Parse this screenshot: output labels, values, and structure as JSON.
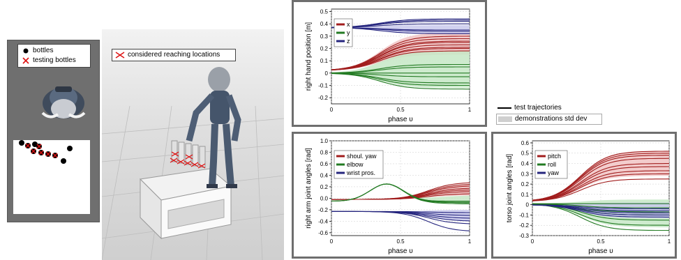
{
  "left_panel": {
    "legend": {
      "bottles": "bottles",
      "testing_bottles": "testing bottles"
    }
  },
  "scene": {
    "legend": {
      "reaching": "considered reaching locations"
    }
  },
  "global_legend": {
    "test": "test trajectories",
    "std": "demonstrations std dev"
  },
  "colors": {
    "red": "#a11d1d",
    "green": "#227a22",
    "blue": "#25257e",
    "band_red": "#f1c4c4",
    "band_green": "#c6e8c6",
    "band_blue": "#c9c9ec"
  },
  "icons": {
    "red_cross": "cross-icon",
    "black_dot": "dot-icon"
  },
  "chart_data": [
    {
      "type": "line",
      "ylabel": "right hand position [m]",
      "xlabel": "phase υ",
      "xticks": [
        "0",
        "0.5",
        "1"
      ],
      "yticks": [
        "0.5",
        "0.4",
        "0.3",
        "0.2",
        "0.1",
        "0",
        "-0.1",
        "-0.2"
      ],
      "ylim": [
        -0.25,
        0.52
      ],
      "xlim": [
        0,
        1
      ],
      "legend_position": "top-left",
      "series": [
        {
          "name": "x",
          "color": "red",
          "start": 0.02,
          "ends": [
            0.3,
            0.28,
            0.26,
            0.25,
            0.23,
            0.21,
            0.2,
            0.18
          ],
          "band": [
            0.15,
            0.33
          ],
          "shape": "sigmoid"
        },
        {
          "name": "y",
          "color": "green",
          "start": 0.0,
          "ends": [
            0.07,
            0.05,
            0.0,
            -0.03,
            -0.08,
            -0.1,
            -0.13
          ],
          "band": [
            -0.12,
            0.18
          ],
          "shape": "sigmoid"
        },
        {
          "name": "z",
          "color": "blue",
          "start": 0.37,
          "ends": [
            0.44,
            0.43,
            0.42,
            0.4,
            0.35,
            0.34,
            0.32
          ],
          "band": [
            0.32,
            0.39
          ],
          "shape": "sigmoid"
        }
      ]
    },
    {
      "type": "line",
      "ylabel": "right arm joint angles [rad]",
      "xlabel": "phase υ",
      "xticks": [
        "0",
        "0.5",
        "1"
      ],
      "yticks": [
        "1.0",
        "0.8",
        "0.6",
        "0.4",
        "0.2",
        "0.0",
        "-0.2",
        "-0.4",
        "-0.6"
      ],
      "ylim": [
        -0.65,
        1.0
      ],
      "xlim": [
        0,
        1
      ],
      "legend_position": "top-left",
      "series": [
        {
          "name": "shoul. yaw",
          "color": "red",
          "start": -0.02,
          "ends": [
            0.28,
            0.25,
            0.22,
            0.18,
            0.15,
            0.12,
            0.08
          ],
          "band": [
            0.05,
            0.25
          ],
          "shape": "sigmoid_late"
        },
        {
          "name": "elbow",
          "color": "green",
          "start": -0.05,
          "ends": [
            -0.05,
            -0.07,
            -0.08,
            -0.1
          ],
          "band": [
            -0.08,
            0.05
          ],
          "shape": "bump",
          "peak": 0.3
        },
        {
          "name": "wrist pros.",
          "color": "blue",
          "start": -0.23,
          "ends": [
            -0.25,
            -0.3,
            -0.35,
            -0.4,
            -0.45,
            -0.58
          ],
          "band": [
            -0.4,
            -0.2
          ],
          "shape": "sigmoid_late"
        }
      ]
    },
    {
      "type": "line",
      "ylabel": "torso joint angles [rad]",
      "xlabel": "phase υ",
      "xticks": [
        "0",
        "0.5",
        "1"
      ],
      "yticks": [
        "0.6",
        "0.5",
        "0.4",
        "0.3",
        "0.2",
        "0.1",
        "0",
        "-0.1",
        "-0.2",
        "-0.3"
      ],
      "ylim": [
        -0.3,
        0.62
      ],
      "xlim": [
        0,
        1
      ],
      "legend_position": "top-left",
      "series": [
        {
          "name": "pitch",
          "color": "red",
          "start": 0.03,
          "ends": [
            0.52,
            0.5,
            0.48,
            0.45,
            0.4,
            0.37,
            0.33,
            0.3,
            0.25
          ],
          "band": [
            0.28,
            0.52
          ],
          "shape": "sigmoid"
        },
        {
          "name": "roll",
          "color": "green",
          "start": 0.01,
          "ends": [
            0.01,
            -0.03,
            -0.07,
            -0.1,
            -0.15,
            -0.2,
            -0.25
          ],
          "band": [
            -0.22,
            0.05
          ],
          "shape": "sigmoid"
        },
        {
          "name": "yaw",
          "color": "blue",
          "start": 0.0,
          "ends": [
            -0.04,
            -0.06,
            -0.08,
            -0.1,
            -0.12
          ],
          "band": [
            -0.13,
            0.02
          ],
          "shape": "sigmoid"
        }
      ]
    }
  ]
}
